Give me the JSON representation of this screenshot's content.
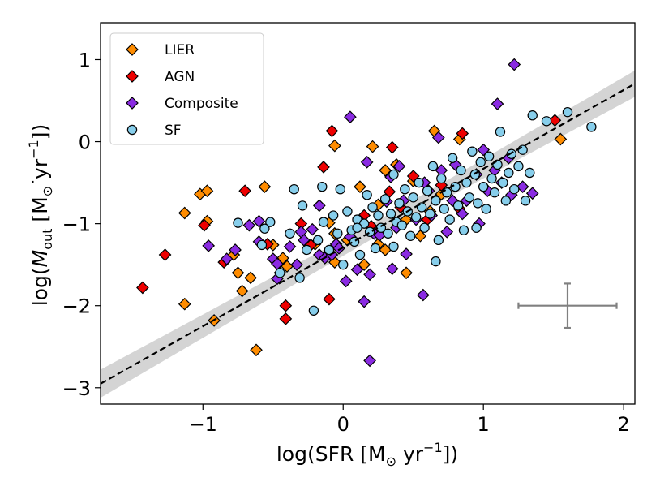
{
  "chart_data": {
    "type": "scatter",
    "title": "",
    "xlabel": {
      "main": "log(SFR [M",
      "sub": "⊙",
      "rest": " yr",
      "sup": "−1",
      "close": "])"
    },
    "ylabel": {
      "main": "log(",
      "sym": "M",
      "symsub": "out",
      "rest": " [M",
      "sub": "⊙",
      "rest2": " yr",
      "sup": "−1",
      "close": "])"
    },
    "xlim": [
      -1.73,
      2.08
    ],
    "ylim": [
      -3.2,
      1.45
    ],
    "xticks": [
      -1,
      0,
      1,
      2
    ],
    "yticks": [
      -3,
      -2,
      -1,
      0,
      1
    ],
    "xtick_labels": [
      "−1",
      "0",
      "1",
      "2"
    ],
    "ytick_labels": [
      "−3",
      "−2",
      "−1",
      "0",
      "1"
    ],
    "grid": false,
    "legend": {
      "placement": "top-left",
      "entries": [
        {
          "name": "LIER",
          "marker": "diamond",
          "color": "#ff8c00"
        },
        {
          "name": "AGN",
          "marker": "diamond",
          "color": "#ee0000"
        },
        {
          "name": "Composite",
          "marker": "diamond",
          "color": "#8a2be2"
        },
        {
          "name": "SF",
          "marker": "circle",
          "color": "#87ceeb"
        }
      ]
    },
    "fit": {
      "slope": 0.96,
      "intercept": -1.29,
      "band": 0.09
    },
    "errorbar": {
      "x": 1.6,
      "y": -2.0,
      "xerr": 0.35,
      "yerr": 0.27,
      "color": "#808080"
    },
    "series": [
      {
        "name": "LIER",
        "color": "#ff8c00",
        "marker": "diamond",
        "points": [
          [
            -1.02,
            -0.64
          ],
          [
            -0.97,
            -0.6
          ],
          [
            -1.13,
            -0.87
          ],
          [
            -0.97,
            -0.97
          ],
          [
            -1.13,
            -1.98
          ],
          [
            -0.92,
            -2.18
          ],
          [
            -0.78,
            -1.38
          ],
          [
            -0.75,
            -1.6
          ],
          [
            -0.72,
            -1.82
          ],
          [
            -0.66,
            -1.66
          ],
          [
            -0.62,
            -2.54
          ],
          [
            -0.56,
            -0.55
          ],
          [
            -0.5,
            -1.26
          ],
          [
            -0.45,
            -1.6
          ],
          [
            -0.43,
            -1.42
          ],
          [
            -0.2,
            -1.25
          ],
          [
            -0.1,
            -0.99
          ],
          [
            -0.06,
            -0.05
          ],
          [
            0.03,
            -1.2
          ],
          [
            0.15,
            -1.5
          ],
          [
            0.21,
            -0.06
          ],
          [
            0.25,
            -0.77
          ],
          [
            0.25,
            -1.25
          ],
          [
            0.3,
            -1.32
          ],
          [
            0.38,
            -0.28
          ],
          [
            0.45,
            -0.95
          ],
          [
            0.62,
            -0.85
          ],
          [
            0.65,
            0.13
          ],
          [
            0.7,
            -0.64
          ],
          [
            0.83,
            0.03
          ],
          [
            1.55,
            0.03
          ],
          [
            0.12,
            -0.55
          ],
          [
            -0.06,
            -1.47
          ],
          [
            0.45,
            -1.6
          ],
          [
            0.5,
            -0.48
          ],
          [
            -0.06,
            -1.12
          ],
          [
            -0.4,
            -1.52
          ],
          [
            0.55,
            -1.15
          ],
          [
            0.3,
            -0.35
          ]
        ]
      },
      {
        "name": "AGN",
        "color": "#ee0000",
        "marker": "diamond",
        "points": [
          [
            -1.43,
            -1.78
          ],
          [
            -1.27,
            -1.38
          ],
          [
            -0.99,
            -1.02
          ],
          [
            -0.85,
            -1.47
          ],
          [
            -0.7,
            -0.6
          ],
          [
            -0.54,
            -1.25
          ],
          [
            -0.41,
            -2.0
          ],
          [
            -0.41,
            -2.16
          ],
          [
            -0.23,
            -1.26
          ],
          [
            -0.14,
            -0.31
          ],
          [
            -0.1,
            -1.92
          ],
          [
            -0.08,
            0.13
          ],
          [
            0.2,
            -1.03
          ],
          [
            0.35,
            -0.07
          ],
          [
            0.41,
            -0.8
          ],
          [
            0.5,
            -0.42
          ],
          [
            0.7,
            -0.53
          ],
          [
            0.83,
            -0.82
          ],
          [
            0.85,
            0.1
          ],
          [
            1.51,
            0.26
          ],
          [
            0.33,
            -0.61
          ],
          [
            0.6,
            -0.95
          ],
          [
            0.15,
            -0.9
          ],
          [
            -0.3,
            -1.0
          ]
        ]
      },
      {
        "name": "Composite",
        "color": "#8a2be2",
        "marker": "diamond",
        "points": [
          [
            -0.96,
            -1.27
          ],
          [
            -0.83,
            -1.43
          ],
          [
            -0.77,
            -1.32
          ],
          [
            -0.67,
            -1.02
          ],
          [
            -0.6,
            -0.97
          ],
          [
            -0.6,
            -1.22
          ],
          [
            -0.5,
            -1.43
          ],
          [
            -0.47,
            -1.49
          ],
          [
            -0.47,
            -1.67
          ],
          [
            -0.38,
            -1.28
          ],
          [
            -0.33,
            -1.5
          ],
          [
            -0.28,
            -1.2
          ],
          [
            -0.22,
            -1.07
          ],
          [
            -0.17,
            -1.38
          ],
          [
            -0.13,
            -1.42
          ],
          [
            -0.08,
            -1.38
          ],
          [
            -0.05,
            -1.25
          ],
          [
            -0.03,
            -1.3
          ],
          [
            0.02,
            -1.7
          ],
          [
            0.05,
            -1.16
          ],
          [
            0.05,
            0.3
          ],
          [
            0.1,
            -1.56
          ],
          [
            0.12,
            -0.97
          ],
          [
            0.17,
            -0.25
          ],
          [
            0.19,
            -2.67
          ],
          [
            0.19,
            -1.62
          ],
          [
            0.22,
            -1.12
          ],
          [
            0.26,
            -1.14
          ],
          [
            0.31,
            -0.73
          ],
          [
            0.34,
            -0.43
          ],
          [
            0.35,
            -1.55
          ],
          [
            0.38,
            -1.05
          ],
          [
            0.43,
            -0.72
          ],
          [
            0.45,
            -1.37
          ],
          [
            0.52,
            -0.95
          ],
          [
            0.57,
            -1.87
          ],
          [
            0.61,
            -0.6
          ],
          [
            0.63,
            -0.9
          ],
          [
            0.68,
            0.05
          ],
          [
            0.7,
            -0.35
          ],
          [
            0.74,
            -1.1
          ],
          [
            0.78,
            -0.72
          ],
          [
            0.8,
            -0.28
          ],
          [
            0.88,
            -0.72
          ],
          [
            0.95,
            -0.4
          ],
          [
            0.97,
            -1.0
          ],
          [
            1.0,
            -0.1
          ],
          [
            1.03,
            -0.6
          ],
          [
            1.08,
            -0.35
          ],
          [
            1.13,
            -0.5
          ],
          [
            1.18,
            -0.2
          ],
          [
            1.2,
            -0.65
          ],
          [
            1.22,
            0.94
          ],
          [
            1.28,
            -0.55
          ],
          [
            1.35,
            -0.63
          ],
          [
            1.1,
            0.46
          ],
          [
            -0.17,
            -0.78
          ],
          [
            0.4,
            -0.3
          ],
          [
            0.15,
            -1.95
          ],
          [
            -0.3,
            -1.1
          ],
          [
            0.85,
            -0.88
          ],
          [
            0.58,
            -0.5
          ]
        ]
      },
      {
        "name": "SF",
        "color": "#87ceeb",
        "marker": "circle",
        "points": [
          [
            -0.75,
            -0.99
          ],
          [
            -0.58,
            -1.26
          ],
          [
            -0.52,
            -0.98
          ],
          [
            -0.45,
            -1.6
          ],
          [
            -0.38,
            -1.12
          ],
          [
            -0.35,
            -0.58
          ],
          [
            -0.31,
            -1.66
          ],
          [
            -0.29,
            -0.78
          ],
          [
            -0.26,
            -1.32
          ],
          [
            -0.21,
            -2.06
          ],
          [
            -0.18,
            -1.2
          ],
          [
            -0.14,
            -0.98
          ],
          [
            -0.1,
            -1.32
          ],
          [
            -0.07,
            -0.9
          ],
          [
            -0.04,
            -1.12
          ],
          [
            -0.02,
            -0.58
          ],
          [
            0.0,
            -1.5
          ],
          [
            0.03,
            -0.85
          ],
          [
            0.06,
            -1.08
          ],
          [
            0.08,
            -1.22
          ],
          [
            0.1,
            -0.95
          ],
          [
            0.12,
            -1.38
          ],
          [
            0.15,
            -1.0
          ],
          [
            0.17,
            -0.65
          ],
          [
            0.19,
            -1.1
          ],
          [
            0.21,
            -0.8
          ],
          [
            0.23,
            -1.3
          ],
          [
            0.25,
            -0.9
          ],
          [
            0.27,
            -1.05
          ],
          [
            0.3,
            -0.7
          ],
          [
            0.32,
            -1.12
          ],
          [
            0.34,
            -0.88
          ],
          [
            0.36,
            -0.4
          ],
          [
            0.38,
            -0.98
          ],
          [
            0.4,
            -0.75
          ],
          [
            0.42,
            -1.02
          ],
          [
            0.44,
            -0.58
          ],
          [
            0.46,
            -0.85
          ],
          [
            0.48,
            -1.15
          ],
          [
            0.5,
            -0.68
          ],
          [
            0.52,
            -0.92
          ],
          [
            0.54,
            -0.5
          ],
          [
            0.56,
            -0.8
          ],
          [
            0.58,
            -1.05
          ],
          [
            0.6,
            -0.6
          ],
          [
            0.62,
            -0.88
          ],
          [
            0.64,
            -0.3
          ],
          [
            0.66,
            -0.72
          ],
          [
            0.68,
            -1.2
          ],
          [
            0.7,
            -0.45
          ],
          [
            0.72,
            -0.82
          ],
          [
            0.74,
            -0.62
          ],
          [
            0.76,
            -0.95
          ],
          [
            0.78,
            -0.2
          ],
          [
            0.8,
            -0.55
          ],
          [
            0.82,
            -0.78
          ],
          [
            0.84,
            -0.35
          ],
          [
            0.86,
            -1.08
          ],
          [
            0.88,
            -0.5
          ],
          [
            0.9,
            -0.68
          ],
          [
            0.92,
            -0.12
          ],
          [
            0.94,
            -0.4
          ],
          [
            0.96,
            -0.75
          ],
          [
            0.98,
            -0.25
          ],
          [
            1.0,
            -0.55
          ],
          [
            1.02,
            -0.82
          ],
          [
            1.04,
            -0.18
          ],
          [
            1.06,
            -0.45
          ],
          [
            1.08,
            -0.62
          ],
          [
            1.1,
            -0.28
          ],
          [
            1.12,
            0.12
          ],
          [
            1.14,
            -0.5
          ],
          [
            1.16,
            -0.72
          ],
          [
            1.18,
            -0.38
          ],
          [
            1.2,
            -0.15
          ],
          [
            1.22,
            -0.58
          ],
          [
            1.25,
            -0.3
          ],
          [
            1.28,
            -0.1
          ],
          [
            1.3,
            -0.72
          ],
          [
            1.33,
            -0.38
          ],
          [
            1.35,
            0.32
          ],
          [
            1.45,
            0.25
          ],
          [
            1.6,
            0.36
          ],
          [
            1.77,
            0.18
          ],
          [
            0.95,
            -1.05
          ],
          [
            0.66,
            -1.46
          ],
          [
            0.36,
            -1.28
          ],
          [
            0.1,
            -1.05
          ],
          [
            -0.15,
            -0.55
          ],
          [
            -0.56,
            -1.06
          ]
        ]
      }
    ]
  }
}
